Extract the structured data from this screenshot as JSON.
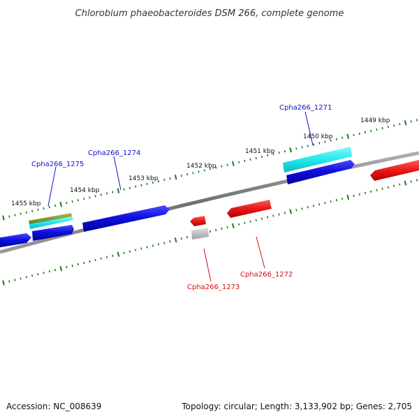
{
  "title": "Chlorobium phaeobacteroides DSM 266, complete genome",
  "footer": {
    "accession": "Accession: NC_008639",
    "summary": "Topology: circular; Length: 3,133,902 bp; Genes: 2,705"
  },
  "colors": {
    "backbone": "#888888",
    "tick": "#1a7a1a",
    "forward_label": "#1010c8",
    "reverse_label": "#d01010",
    "cds_blue": "#1010e0",
    "cds_cyan": "#22e8ee",
    "cds_olive": "#7a9a30",
    "cds_red": "#e81818",
    "cds_grey": "#b8b8b8"
  },
  "scale": {
    "tick_labels": [
      "1455 kbp",
      "1454 kbp",
      "1453 kbp",
      "1452 kbp",
      "1451 kbp",
      "1450 kbp",
      "1449 kbp"
    ]
  },
  "gene_labels": [
    {
      "name": "Cpha266_1271",
      "strand": "forward"
    },
    {
      "name": "Cpha266_1272",
      "strand": "reverse"
    },
    {
      "name": "Cpha266_1273",
      "strand": "reverse"
    },
    {
      "name": "Cpha266_1274",
      "strand": "forward"
    },
    {
      "name": "Cpha266_1275",
      "strand": "forward"
    }
  ]
}
